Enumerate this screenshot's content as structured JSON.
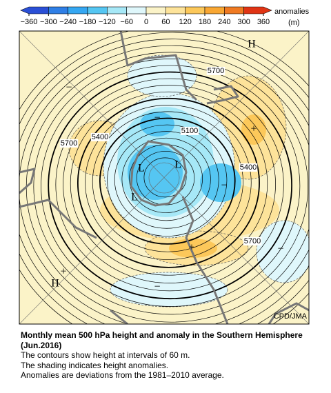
{
  "colorbar": {
    "title": "anomalies",
    "unit": "(m)",
    "ticks": [
      {
        "value": -360,
        "label": "−360"
      },
      {
        "value": -300,
        "label": "−300"
      },
      {
        "value": -240,
        "label": "−240"
      },
      {
        "value": -180,
        "label": "−180"
      },
      {
        "value": -120,
        "label": "−120"
      },
      {
        "value": -60,
        "label": "−60"
      },
      0,
      60,
      120,
      180,
      240,
      300,
      360
    ],
    "colors": [
      "#2a4fd6",
      "#2f7fe6",
      "#35a7f2",
      "#55c6f2",
      "#a6e8f7",
      "#dff7fb",
      "#fbf3c8",
      "#fde39a",
      "#fcc85a",
      "#f9a733",
      "#f07a22",
      "#e03414"
    ]
  },
  "map": {
    "labels": [
      "H",
      "H",
      "L",
      "L",
      "L",
      "5700",
      "5700",
      "5700",
      "5400",
      "5400",
      "5100",
      "+",
      "+",
      "+",
      "−",
      "−",
      "−",
      "−",
      "−"
    ],
    "credit": "CPD/JMA"
  },
  "caption": {
    "title": "Monthly mean 500 hPa height and anomaly in the Southern Hemisphere (Jun.2016)",
    "lines": [
      "The contours show height at intervals of 60 m.",
      "The shading indicates height anomalies.",
      "Anomalies are deviations from the 1981–2010 average."
    ]
  }
}
